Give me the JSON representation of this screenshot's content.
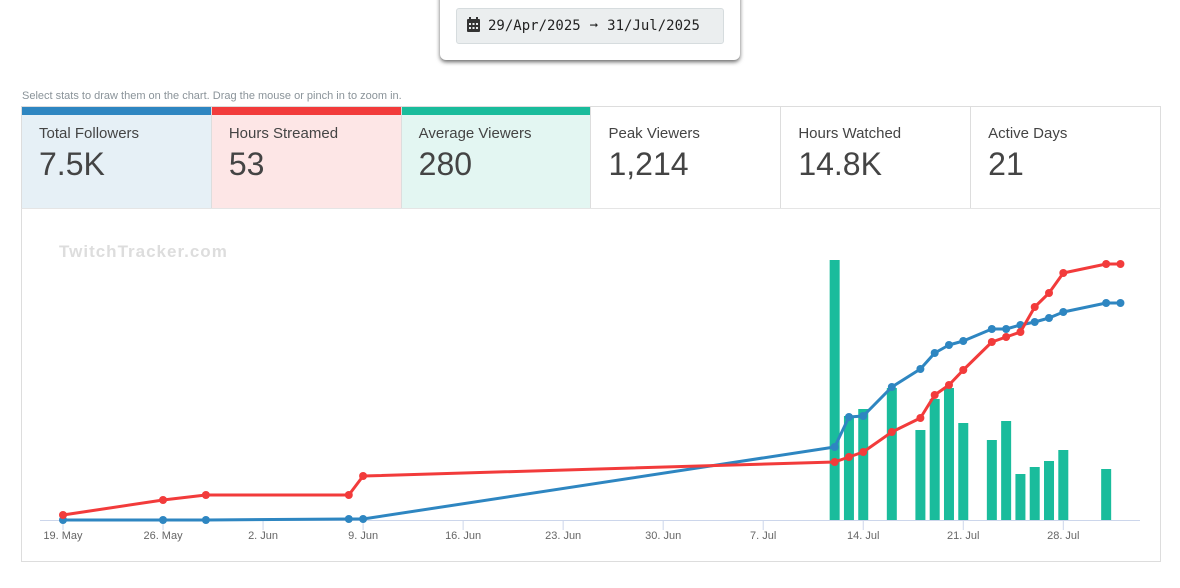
{
  "date_range": {
    "start": "29/Apr/2025",
    "arrow": "➞",
    "end": "31/Jul/2025"
  },
  "hint": "Select stats to draw them on the chart. Drag the mouse or pinch in to zoom in.",
  "stats": [
    {
      "label": "Total Followers",
      "value": "7.5K",
      "color": "#2e86c1",
      "bg": "#e6f0f6"
    },
    {
      "label": "Hours Streamed",
      "value": "53",
      "color": "#f23b3b",
      "bg": "#fde6e6"
    },
    {
      "label": "Average Viewers",
      "value": "280",
      "color": "#1abc9c",
      "bg": "#e3f6f2"
    },
    {
      "label": "Peak Viewers",
      "value": "1,214",
      "color": "",
      "bg": "#fff"
    },
    {
      "label": "Hours Watched",
      "value": "14.8K",
      "color": "",
      "bg": "#fff"
    },
    {
      "label": "Active Days",
      "value": "21",
      "color": "",
      "bg": "#fff"
    }
  ],
  "chart_data": {
    "type": "line+bar",
    "watermark": "TwitchTracker.com",
    "x_unit": "days since 19 May",
    "xlim": [
      -1,
      77
    ],
    "ylim": [
      0,
      260
    ],
    "xticks": [
      {
        "day": 0,
        "label": "19. May"
      },
      {
        "day": 7,
        "label": "26. May"
      },
      {
        "day": 14,
        "label": "2. Jun"
      },
      {
        "day": 21,
        "label": "9. Jun"
      },
      {
        "day": 28,
        "label": "16. Jun"
      },
      {
        "day": 35,
        "label": "23. Jun"
      },
      {
        "day": 42,
        "label": "30. Jun"
      },
      {
        "day": 49,
        "label": "7. Jul"
      },
      {
        "day": 56,
        "label": "14. Jul"
      },
      {
        "day": 63,
        "label": "21. Jul"
      },
      {
        "day": 70,
        "label": "28. Jul"
      }
    ],
    "series": [
      {
        "name": "Average Viewers",
        "kind": "bar",
        "color": "#1abc9c",
        "x": [
          54,
          55,
          56,
          58,
          60,
          61,
          62,
          63,
          65,
          66,
          67,
          68,
          69,
          70,
          73
        ],
        "y": [
          260,
          104,
          111,
          132,
          90,
          121,
          132,
          97,
          80,
          99,
          46,
          53,
          59,
          70,
          51
        ]
      },
      {
        "name": "Hours Streamed",
        "kind": "line",
        "color": "#f23b3b",
        "x": [
          0,
          7,
          10,
          20,
          21,
          54,
          55,
          56,
          58,
          60,
          61,
          62,
          63,
          65,
          66,
          67,
          68,
          69,
          70,
          73,
          74
        ],
        "y": [
          5,
          20,
          25,
          25,
          44,
          58,
          63,
          68,
          88,
          102,
          125,
          135,
          150,
          178,
          183,
          188,
          213,
          227,
          247,
          256,
          256
        ]
      },
      {
        "name": "Total Followers",
        "kind": "line",
        "color": "#2e86c1",
        "x": [
          0,
          7,
          10,
          20,
          21,
          54,
          55,
          56,
          58,
          60,
          61,
          62,
          63,
          65,
          66,
          67,
          68,
          69,
          70,
          73,
          74
        ],
        "y": [
          0,
          0,
          0,
          1,
          1,
          73,
          103,
          104,
          133,
          151,
          167,
          175,
          179,
          191,
          191,
          195,
          198,
          202,
          208,
          217,
          217
        ]
      }
    ]
  }
}
